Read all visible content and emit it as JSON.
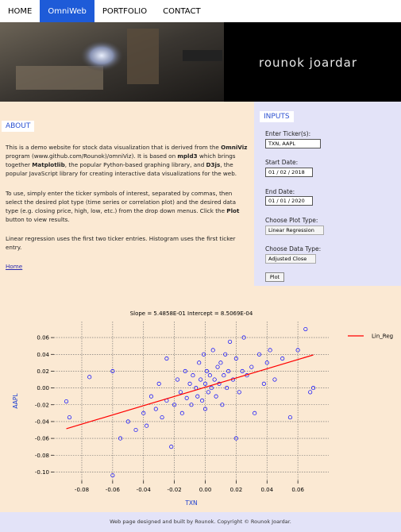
{
  "nav": {
    "items": [
      "HOME",
      "OmniWeb",
      "PORTFOLIO",
      "CONTACT"
    ],
    "active": 1
  },
  "banner": {
    "name": "rounok joardar"
  },
  "about": {
    "heading": "ABOUT",
    "paragraphs": [
      [
        "This is a demo website for stock data visualization that is derived from the ",
        "OmniViz",
        " program (www.github.com/Rounok)/omniViz). It is based on ",
        "mpld3",
        " which brings together ",
        "Matplotlib",
        ", the popular Python-based graphing library, and ",
        "D3js",
        ", the popular JavaScript library for creating interactive data visualizations for the web."
      ],
      [
        "To use, simply enter the ticker symbols of interest, separated by commas, then select the desired plot type (time series or correlation plot) and the desired data type (e.g. closing price, high, low, etc.) from the drop down menus. Click the ",
        "Plot",
        " button to view results."
      ],
      [
        "Linear regression uses the first two ticker entries. Histogram uses the first ticker entry."
      ]
    ],
    "link": "Home"
  },
  "inputs": {
    "heading": "INPUTS",
    "ticker_label": "Enter Ticker(s):",
    "ticker": "TXN, AAPL",
    "start_label": "Start Date:",
    "start": "01 / 02 / 2018",
    "end_label": "End Date:",
    "end": "01 / 01 / 2020",
    "plot_type_label": "Choose Plot Type:",
    "plot_type": "Linear Regression",
    "data_type_label": "Choose Data Type:",
    "data_type": "Adjusted Close",
    "button": "Plot"
  },
  "chart_data": {
    "type": "scatter",
    "title": "Slope = 5.4858E-01 Intercept = 8.5069E-04",
    "xlabel": "TXN",
    "ylabel": "AAPL",
    "xlim": [
      -0.098,
      0.08
    ],
    "ylim": [
      -0.11,
      0.079
    ],
    "xticks": [
      -0.08,
      -0.06,
      -0.04,
      -0.02,
      {
        "value": 0,
        "label": "0.00"
      },
      0.02,
      0.04,
      0.06
    ],
    "yticks": [
      0.06,
      0.04,
      0.02,
      {
        "value": 0,
        "label": "0.00"
      },
      -0.02,
      -0.04,
      -0.06,
      -0.08,
      {
        "value": -0.1,
        "label": "-0.10"
      }
    ],
    "grid": true,
    "legend": "right",
    "series": [
      {
        "color": "#0000ff",
        "x": [
          -0.09,
          -0.088,
          -0.075,
          -0.06,
          -0.055,
          -0.05,
          -0.045,
          -0.04,
          -0.038,
          -0.035,
          -0.032,
          -0.03,
          -0.028,
          -0.025,
          -0.022,
          -0.02,
          -0.018,
          -0.016,
          -0.015,
          -0.013,
          -0.012,
          -0.01,
          -0.009,
          -0.008,
          -0.006,
          -0.005,
          -0.004,
          -0.003,
          -0.002,
          -0.001,
          0,
          0,
          0.001,
          0.002,
          0.003,
          0.004,
          0.005,
          0.006,
          0.007,
          0.008,
          0.009,
          0.01,
          0.011,
          0.012,
          0.013,
          0.014,
          0.015,
          0.016,
          0.018,
          0.02,
          0.022,
          0.024,
          0.025,
          0.027,
          0.03,
          0.032,
          0.035,
          0.038,
          0.04,
          0.042,
          0.045,
          0.05,
          0.055,
          0.06,
          0.065,
          0.068,
          0.07,
          -0.06,
          -0.025,
          0.02
        ],
        "values": [
          -0.016,
          -0.035,
          0.013,
          -0.104,
          -0.06,
          -0.04,
          -0.05,
          -0.03,
          -0.045,
          -0.01,
          -0.025,
          0.005,
          -0.035,
          -0.015,
          -0.07,
          -0.02,
          0.01,
          -0.005,
          -0.03,
          0.02,
          -0.012,
          0.005,
          -0.02,
          0.015,
          0.0,
          -0.01,
          0.03,
          0.01,
          -0.015,
          0.04,
          0.005,
          -0.025,
          0.02,
          -0.005,
          0.015,
          0.0,
          0.045,
          0.01,
          -0.01,
          0.025,
          0.005,
          0.03,
          -0.02,
          0.015,
          0.04,
          0.0,
          0.02,
          0.055,
          0.01,
          0.035,
          -0.005,
          0.02,
          0.06,
          0.015,
          0.025,
          -0.03,
          0.04,
          0.005,
          0.03,
          0.045,
          0.01,
          0.035,
          -0.035,
          0.045,
          0.07,
          -0.005,
          0.0,
          0.02,
          0.035,
          -0.06
        ]
      },
      {
        "name": "Lin_Reg",
        "type": "line",
        "color": "#ff0000",
        "x": [
          -0.09,
          0.07
        ],
        "values": [
          -0.0485,
          0.0393
        ]
      }
    ]
  },
  "footer": "Web page designed and built by Rounok. Copyright © Rounok Joardar."
}
